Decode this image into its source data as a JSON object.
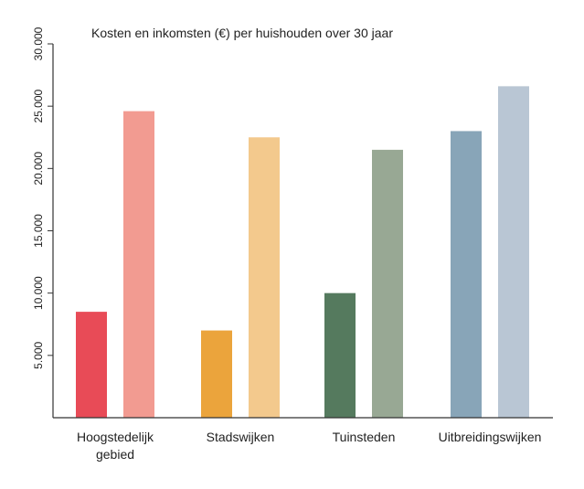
{
  "chart_data": {
    "type": "bar",
    "title": "Kosten en inkomsten (€) per huishouden over 30 jaar",
    "xlabel": "",
    "ylabel": "",
    "ylim": [
      0,
      30000
    ],
    "yticks": [
      {
        "value": 5000,
        "label": "5.000"
      },
      {
        "value": 10000,
        "label": "10.000"
      },
      {
        "value": 15000,
        "label": "15.000"
      },
      {
        "value": 20000,
        "label": "20.000"
      },
      {
        "value": 25000,
        "label": "25.000"
      },
      {
        "value": 30000,
        "label": "30.000"
      }
    ],
    "grid": false,
    "legend": "none",
    "categories": [
      {
        "label_lines": [
          "Hoogstedelijk",
          "gebied"
        ],
        "values": [
          8500,
          24600
        ],
        "colors": [
          "#e84b57",
          "#f29b91"
        ]
      },
      {
        "label_lines": [
          "Stadswijken"
        ],
        "values": [
          7000,
          22500
        ],
        "colors": [
          "#eba43c",
          "#f3c98d"
        ]
      },
      {
        "label_lines": [
          "Tuinsteden"
        ],
        "values": [
          10000,
          21500
        ],
        "colors": [
          "#557a5e",
          "#98a894"
        ]
      },
      {
        "label_lines": [
          "Uitbreidingswijken"
        ],
        "values": [
          23000,
          26600
        ],
        "colors": [
          "#88a5b8",
          "#b9c6d4"
        ]
      }
    ]
  }
}
